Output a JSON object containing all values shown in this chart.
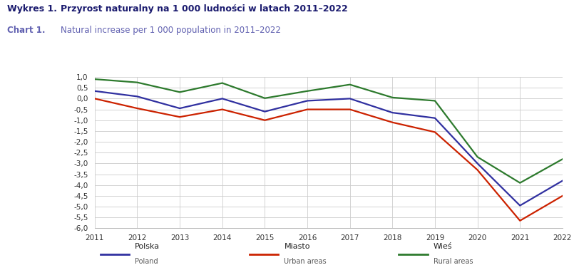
{
  "title_pl_left": "Wykres 1.",
  "title_pl_right": "Przyrost naturalny na 1 000 ludności w latach 2011–2022",
  "title_en_left": "Chart 1.",
  "title_en_right": "Natural increase per 1 000 population in 2011–2022",
  "years": [
    2011,
    2012,
    2013,
    2014,
    2015,
    2016,
    2017,
    2018,
    2019,
    2020,
    2021,
    2022
  ],
  "polska": [
    0.35,
    0.1,
    -0.45,
    0.0,
    -0.6,
    -0.1,
    0.0,
    -0.65,
    -0.9,
    -3.0,
    -4.95,
    -3.8
  ],
  "miasto": [
    0.0,
    -0.45,
    -0.85,
    -0.5,
    -1.0,
    -0.5,
    -0.5,
    -1.1,
    -1.55,
    -3.3,
    -5.65,
    -4.5
  ],
  "wies": [
    0.9,
    0.75,
    0.3,
    0.72,
    0.02,
    0.35,
    0.65,
    0.05,
    -0.1,
    -2.7,
    -3.9,
    -2.8
  ],
  "polska_color": "#3030a0",
  "miasto_color": "#cc2200",
  "wies_color": "#2d7a2d",
  "ylim": [
    -6.0,
    1.0
  ],
  "yticks": [
    1.0,
    0.5,
    0.0,
    -0.5,
    -1.0,
    -1.5,
    -2.0,
    -2.5,
    -3.0,
    -3.5,
    -4.0,
    -4.5,
    -5.0,
    -5.5,
    -6.0
  ],
  "background_color": "#ffffff",
  "grid_color": "#cccccc",
  "legend": [
    {
      "label_pl": "Polska",
      "label_en": "Poland",
      "color": "#3030a0"
    },
    {
      "label_pl": "Miasto",
      "label_en": "Urban areas",
      "color": "#cc2200"
    },
    {
      "label_pl": "Wieś",
      "label_en": "Rural areas",
      "color": "#2d7a2d"
    }
  ]
}
